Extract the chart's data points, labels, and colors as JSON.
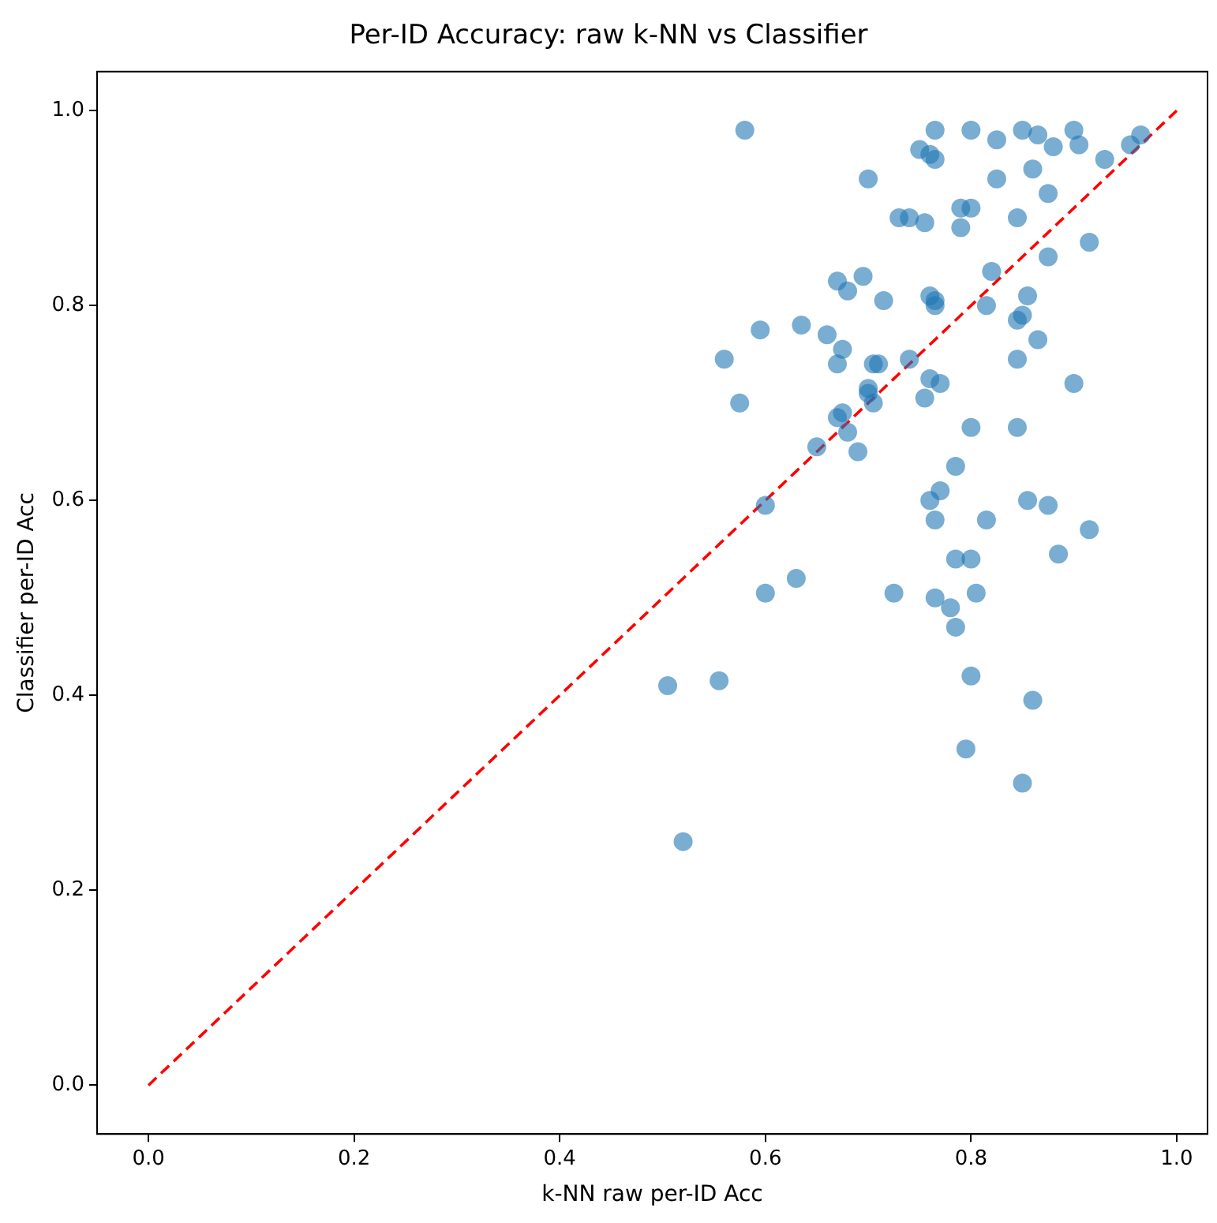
{
  "chart_data": {
    "type": "scatter",
    "title": "Per-ID Accuracy: raw k-NN vs Classifier",
    "xlabel": "k-NN raw per-ID Acc",
    "ylabel": "Classifier per-ID Acc",
    "xlim": [
      -0.05,
      1.03
    ],
    "ylim": [
      -0.05,
      1.04
    ],
    "xticks": [
      {
        "value": 0,
        "label": "0.0"
      },
      {
        "value": 0.2,
        "label": "0.2"
      },
      {
        "value": 0.4,
        "label": "0.4"
      },
      {
        "value": 0.6,
        "label": "0.6"
      },
      {
        "value": 0.8,
        "label": "0.8"
      },
      {
        "value": 1,
        "label": "1.0"
      }
    ],
    "yticks": [
      {
        "value": 0,
        "label": "0.0"
      },
      {
        "value": 0.2,
        "label": "0.2"
      },
      {
        "value": 0.4,
        "label": "0.4"
      },
      {
        "value": 0.6,
        "label": "0.6"
      },
      {
        "value": 0.8,
        "label": "0.8"
      },
      {
        "value": 1,
        "label": "1.0"
      }
    ],
    "grid": false,
    "legend": false,
    "marker": "circle",
    "series": [
      {
        "type": "scatter",
        "color": "#1f77b4",
        "x": [
          0.58,
          0.765,
          0.8,
          0.85,
          0.9,
          0.865,
          0.825,
          0.905,
          0.88,
          0.955,
          0.965,
          0.75,
          0.76,
          0.765,
          0.93,
          0.7,
          0.825,
          0.86,
          0.875,
          0.73,
          0.74,
          0.755,
          0.79,
          0.8,
          0.79,
          0.845,
          0.915,
          0.875,
          0.67,
          0.695,
          0.68,
          0.715,
          0.76,
          0.765,
          0.765,
          0.82,
          0.815,
          0.855,
          0.845,
          0.85,
          0.865,
          0.56,
          0.595,
          0.635,
          0.66,
          0.675,
          0.67,
          0.705,
          0.71,
          0.74,
          0.7,
          0.7,
          0.705,
          0.76,
          0.77,
          0.755,
          0.845,
          0.9,
          0.575,
          0.675,
          0.67,
          0.68,
          0.65,
          0.69,
          0.8,
          0.845,
          0.785,
          0.77,
          0.6,
          0.76,
          0.855,
          0.875,
          0.765,
          0.815,
          0.915,
          0.785,
          0.8,
          0.885,
          0.63,
          0.6,
          0.725,
          0.765,
          0.805,
          0.78,
          0.785,
          0.8,
          0.86,
          0.505,
          0.555,
          0.795,
          0.85,
          0.52
        ],
        "values": [
          0.98,
          0.98,
          0.98,
          0.98,
          0.98,
          0.975,
          0.97,
          0.965,
          0.963,
          0.965,
          0.975,
          0.96,
          0.955,
          0.95,
          0.95,
          0.93,
          0.93,
          0.94,
          0.915,
          0.89,
          0.89,
          0.885,
          0.9,
          0.9,
          0.88,
          0.89,
          0.865,
          0.85,
          0.825,
          0.83,
          0.815,
          0.805,
          0.81,
          0.8,
          0.805,
          0.835,
          0.8,
          0.81,
          0.785,
          0.79,
          0.765,
          0.745,
          0.775,
          0.78,
          0.77,
          0.755,
          0.74,
          0.74,
          0.74,
          0.745,
          0.715,
          0.71,
          0.7,
          0.725,
          0.72,
          0.705,
          0.745,
          0.72,
          0.7,
          0.69,
          0.685,
          0.67,
          0.655,
          0.65,
          0.675,
          0.675,
          0.635,
          0.61,
          0.595,
          0.6,
          0.6,
          0.595,
          0.58,
          0.58,
          0.57,
          0.54,
          0.54,
          0.545,
          0.52,
          0.505,
          0.505,
          0.5,
          0.505,
          0.49,
          0.47,
          0.42,
          0.395,
          0.41,
          0.415,
          0.345,
          0.31,
          0.25
        ]
      },
      {
        "type": "line",
        "color": "#ff0000",
        "line_style": "dashed",
        "marker": "none",
        "x": [
          0,
          1
        ],
        "values": [
          0,
          1
        ]
      }
    ]
  }
}
